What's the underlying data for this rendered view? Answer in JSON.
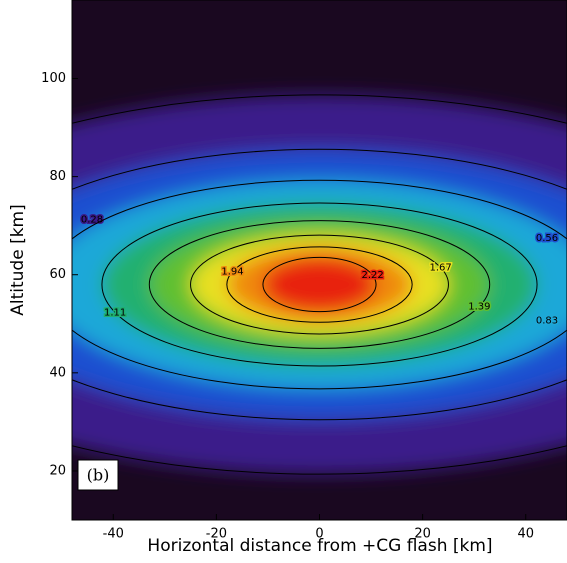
{
  "chart_data": {
    "type": "contour",
    "panel_label": "(b)",
    "x_label": "Horizontal distance from +CG flash [km]",
    "y_label": "Altitude [km]",
    "xlim": [
      -48,
      48
    ],
    "xticks": [
      -40,
      -20,
      0,
      20,
      40
    ],
    "ylim": [
      10,
      116
    ],
    "yticks": [
      20,
      40,
      60,
      80,
      100
    ],
    "levels": [
      0.28,
      0.56,
      0.83,
      1.11,
      1.39,
      1.67,
      1.94,
      2.22
    ],
    "colors": [
      "#3a1a8a",
      "#1f4fd0",
      "#1fa8d8",
      "#20b070",
      "#60c030",
      "#e8e020",
      "#f08a10",
      "#e82010"
    ]
  }
}
